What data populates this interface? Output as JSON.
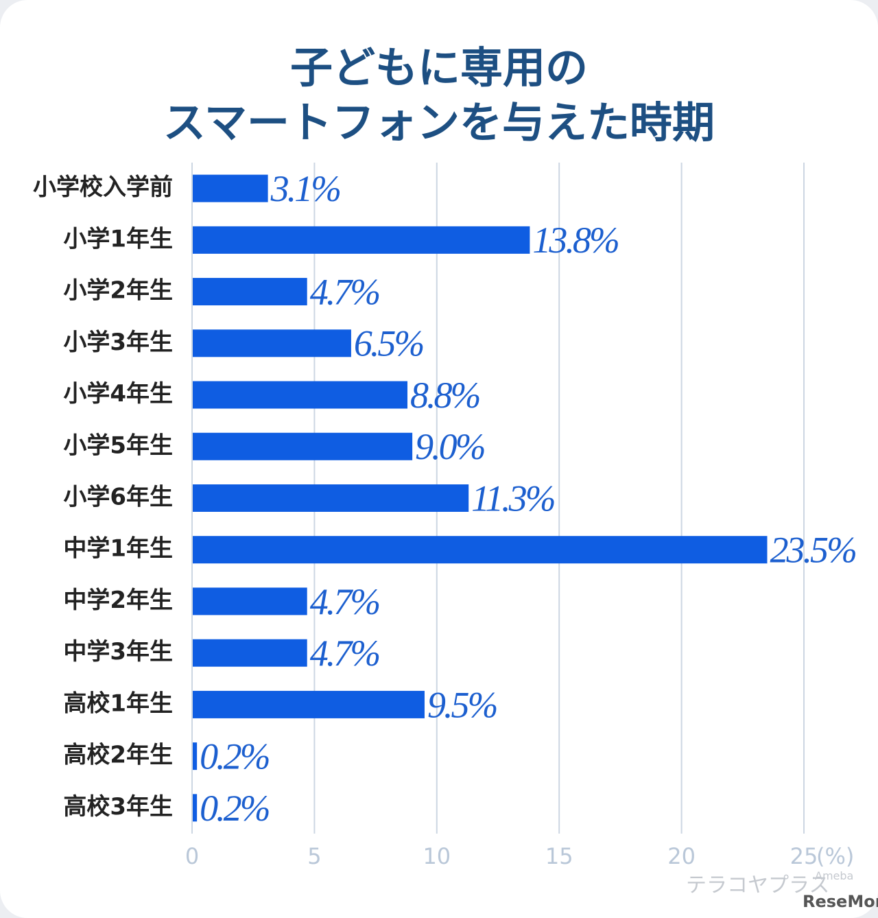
{
  "chart_data": {
    "type": "bar",
    "orientation": "horizontal",
    "title": [
      "子どもに専用の",
      "スマートフォンを与えた時期"
    ],
    "categories": [
      "小学校入学前",
      "小学1年生",
      "小学2年生",
      "小学3年生",
      "小学4年生",
      "小学5年生",
      "小学6年生",
      "中学1年生",
      "中学2年生",
      "中学3年生",
      "高校1年生",
      "高校2年生",
      "高校3年生"
    ],
    "values": [
      3.1,
      13.8,
      4.7,
      6.5,
      8.8,
      9.0,
      11.3,
      23.5,
      4.7,
      4.7,
      9.5,
      0.2,
      0.2
    ],
    "value_labels": [
      "3.1%",
      "13.8%",
      "4.7%",
      "6.5%",
      "8.8%",
      "9.0%",
      "11.3%",
      "23.5%",
      "4.7%",
      "4.7%",
      "9.5%",
      "0.2%",
      "0.2%"
    ],
    "color": "#0f5de2",
    "xlim": [
      0,
      25
    ],
    "xticks": [
      0,
      5,
      10,
      15,
      20,
      25
    ],
    "x_unit": "(%)",
    "grid": true,
    "watermarks": [
      "テラコヤプラス",
      "Ameba",
      "ReseMom"
    ]
  }
}
